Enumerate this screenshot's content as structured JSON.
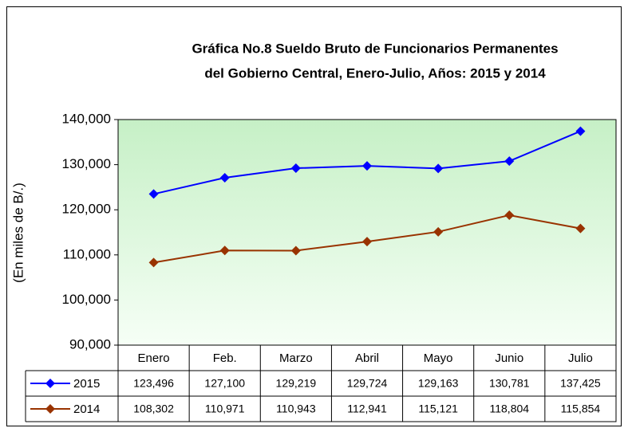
{
  "chart_data": {
    "type": "line",
    "title": [
      "Gráfica No.8 Sueldo Bruto de Funcionarios Permanentes",
      "del Gobierno Central, Enero-Julio, Años: 2015 y 2014"
    ],
    "y_label": "(En miles de B/.)",
    "categories": [
      "Enero",
      "Feb.",
      "Marzo",
      "Abril",
      "Mayo",
      "Junio",
      "Julio"
    ],
    "series": [
      {
        "name": "2015",
        "color": "#0000ff",
        "values": [
          123496,
          127100,
          129219,
          129724,
          129163,
          130781,
          137425
        ],
        "value_labels": [
          "123,496",
          "127,100",
          "129,219",
          "129,724",
          "129,163",
          "130,781",
          "137,425"
        ]
      },
      {
        "name": "2014",
        "color": "#993300",
        "values": [
          108302,
          110971,
          110943,
          112941,
          115121,
          118804,
          115854
        ],
        "value_labels": [
          "108,302",
          "110,971",
          "110,943",
          "112,941",
          "115,121",
          "118,804",
          "115,854"
        ]
      }
    ],
    "ylim": [
      90000,
      140000
    ],
    "yticks": [
      {
        "value": 90000,
        "label": "90,000"
      },
      {
        "value": 100000,
        "label": "100,000"
      },
      {
        "value": 110000,
        "label": "110,000"
      },
      {
        "value": 120000,
        "label": "120,000"
      },
      {
        "value": 130000,
        "label": "130,000"
      },
      {
        "value": 140000,
        "label": "140,000"
      }
    ],
    "grid": false
  }
}
